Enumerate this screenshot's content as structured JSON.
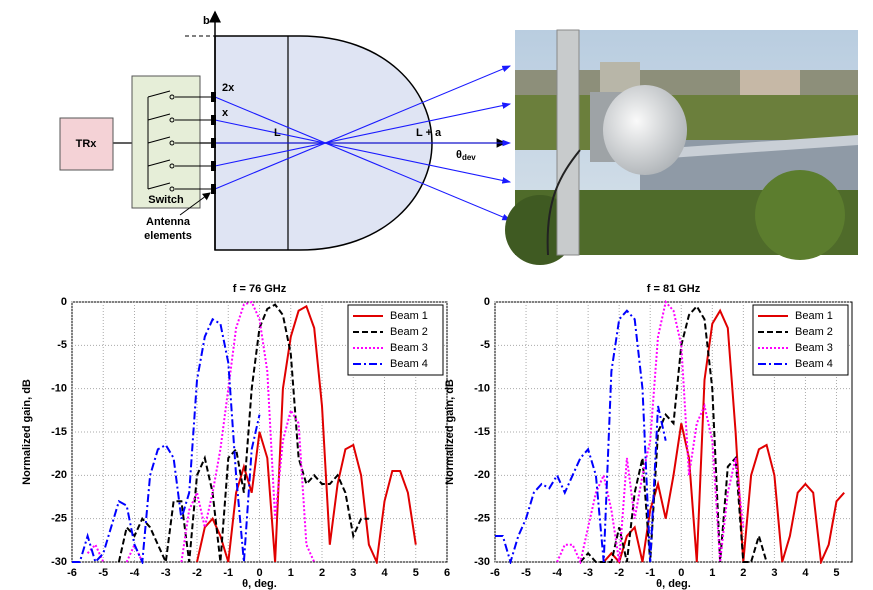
{
  "diagram": {
    "b": "b",
    "two_x": "2x",
    "x": "x",
    "L": "L",
    "L_plus_a": "L + a",
    "theta": "θ",
    "theta_sub": "dev",
    "trx": "TRx",
    "switch": "Switch",
    "antenna": [
      "Antenna",
      "elements"
    ]
  },
  "chart_data": [
    {
      "type": "line",
      "title": "f = 76 GHz",
      "xlabel": "θ, deg.",
      "ylabel": "Normalized gain, dB",
      "xlim": [
        -6,
        6
      ],
      "ylim": [
        -30,
        0
      ],
      "xticks": [
        -6,
        -5,
        -4,
        -3,
        -2,
        -1,
        0,
        1,
        2,
        3,
        4,
        5,
        6
      ],
      "yticks": [
        0,
        -5,
        -10,
        -15,
        -20,
        -25,
        -30
      ],
      "grid": true,
      "legend": "upper right",
      "x": [
        -6,
        -5.75,
        -5.5,
        -5.25,
        -5,
        -4.75,
        -4.5,
        -4.25,
        -4,
        -3.75,
        -3.5,
        -3.25,
        -3,
        -2.75,
        -2.5,
        -2.25,
        -2,
        -1.75,
        -1.5,
        -1.25,
        -1,
        -0.75,
        -0.5,
        -0.25,
        0,
        0.25,
        0.5,
        0.75,
        1,
        1.25,
        1.5,
        1.75,
        2,
        2.25,
        2.5,
        2.75,
        3,
        3.25,
        3.5,
        3.75,
        4,
        4.25,
        4.5,
        4.75,
        5,
        5.25,
        5.5,
        5.75,
        6
      ],
      "series": [
        {
          "name": "Beam 1",
          "color": "#e00000",
          "style": "solid",
          "values": [
            null,
            null,
            null,
            null,
            null,
            null,
            null,
            null,
            null,
            null,
            null,
            null,
            null,
            null,
            null,
            null,
            -30,
            -26,
            -25,
            -27,
            -30,
            -22,
            -19,
            -22,
            -15,
            -18,
            -30,
            -10,
            -4,
            -1,
            -0.5,
            -3,
            -12,
            -28,
            -21,
            -17,
            -16.5,
            -20,
            -28,
            -30,
            -23,
            -19.5,
            -19.5,
            -22,
            -28,
            null,
            null,
            null,
            null
          ]
        },
        {
          "name": "Beam 2",
          "color": "#000000",
          "style": "dashed",
          "values": [
            null,
            null,
            null,
            null,
            null,
            null,
            -30,
            -26,
            -27,
            -25,
            -26,
            -28,
            -30,
            -23,
            -23,
            -30,
            -20,
            -18,
            -22,
            -30,
            -18,
            -17,
            -22,
            -10,
            -3,
            -0.8,
            -0.3,
            -1.5,
            -6,
            -18,
            -21,
            -20,
            -21,
            -21,
            -20,
            -22,
            -27,
            -25,
            -25,
            null,
            null,
            null,
            null,
            null,
            null,
            null,
            null,
            null,
            null
          ]
        },
        {
          "name": "Beam 3",
          "color": "#ff00ff",
          "style": "dotted",
          "values": [
            null,
            null,
            -29,
            -28,
            -30,
            null,
            null,
            -30,
            -28,
            -30,
            null,
            null,
            null,
            null,
            -30,
            -24,
            -22,
            -26,
            -22,
            -17,
            -10,
            -3,
            -0.3,
            0,
            -2,
            -8,
            -25,
            -16,
            -12.5,
            -14,
            -28,
            -30,
            null,
            null,
            null,
            null,
            null,
            null,
            null,
            null,
            null,
            null,
            null,
            null,
            null,
            null,
            null,
            null,
            null
          ]
        },
        {
          "name": "Beam 4",
          "color": "#0000ff",
          "style": "dash-dot",
          "values": [
            -30,
            -30,
            -27,
            -30,
            -29,
            -26,
            -23,
            -23.5,
            -28,
            -30,
            -20,
            -17,
            -16.5,
            -18,
            -25,
            -22,
            -9,
            -4,
            -2,
            -2.5,
            -7,
            -20,
            -30,
            -17,
            -13,
            null,
            null,
            null,
            null,
            null,
            null,
            null,
            null,
            null,
            null,
            null,
            null,
            null,
            null,
            null,
            null,
            null,
            null,
            null,
            null,
            null,
            null,
            null,
            null
          ]
        }
      ]
    },
    {
      "type": "line",
      "title": "f = 81 GHz",
      "xlabel": "θ, deg.",
      "ylabel": "Normalized gain, dB",
      "xlim": [
        -6,
        5.5
      ],
      "ylim": [
        -30,
        0
      ],
      "xticks": [
        -6,
        -5,
        -4,
        -3,
        -2,
        -1,
        0,
        1,
        2,
        3,
        4,
        5
      ],
      "yticks": [
        0,
        -5,
        -10,
        -15,
        -20,
        -25,
        -30
      ],
      "grid": true,
      "legend": "upper right",
      "x": [
        -6,
        -5.75,
        -5.5,
        -5.25,
        -5,
        -4.75,
        -4.5,
        -4.25,
        -4,
        -3.75,
        -3.5,
        -3.25,
        -3,
        -2.75,
        -2.5,
        -2.25,
        -2,
        -1.75,
        -1.5,
        -1.25,
        -1,
        -0.75,
        -0.5,
        -0.25,
        0,
        0.25,
        0.5,
        0.75,
        1,
        1.25,
        1.5,
        1.75,
        2,
        2.25,
        2.5,
        2.75,
        3,
        3.25,
        3.5,
        3.75,
        4,
        4.25,
        4.5,
        4.75,
        5,
        5.25,
        5.5,
        5.75,
        6
      ],
      "series": [
        {
          "name": "Beam 1",
          "color": "#e00000",
          "style": "solid",
          "values": [
            null,
            null,
            null,
            null,
            null,
            null,
            null,
            null,
            null,
            null,
            null,
            null,
            null,
            null,
            -30,
            -29,
            -30,
            -27,
            -26,
            -30,
            -24,
            -21,
            -25,
            -20,
            -14,
            -18,
            -30,
            -9,
            -2.5,
            -1,
            -3,
            -15,
            -30,
            -20,
            -17,
            -16.5,
            -20,
            -30,
            -27,
            -22,
            -21,
            -22,
            -30,
            -28,
            -23,
            -22,
            null,
            null,
            null
          ]
        },
        {
          "name": "Beam 2",
          "color": "#000000",
          "style": "dashed",
          "values": [
            null,
            null,
            null,
            null,
            null,
            null,
            null,
            null,
            null,
            null,
            null,
            -30,
            -29,
            -30,
            -30,
            -30,
            -26,
            -30,
            -22,
            -18,
            -30,
            -15,
            -13,
            -14,
            -5,
            -1.5,
            -0.5,
            -2,
            -10,
            -30,
            -19,
            -18,
            -30,
            -30,
            -27,
            -30,
            null,
            null,
            null,
            null,
            null,
            null,
            null,
            null,
            null,
            null,
            null,
            null,
            null
          ]
        },
        {
          "name": "Beam 3",
          "color": "#ff00ff",
          "style": "dotted",
          "values": [
            null,
            null,
            null,
            null,
            null,
            null,
            null,
            null,
            -30,
            -28,
            -28,
            -30,
            -26,
            -22,
            -20,
            -24,
            -30,
            -18,
            -25,
            -20,
            -16,
            -4,
            0,
            -1,
            -5,
            -20,
            -14,
            -12,
            -16,
            -30,
            -22,
            -18,
            -26,
            null,
            null,
            null,
            null,
            null,
            null,
            null,
            null,
            null,
            null,
            null,
            null,
            null,
            null,
            null,
            null
          ]
        },
        {
          "name": "Beam 4",
          "color": "#0000ff",
          "style": "dash-dot",
          "values": [
            -27,
            -27,
            -30,
            -27,
            -25,
            -22,
            -21,
            -21.5,
            -20,
            -22,
            -20,
            -18,
            -17,
            -20,
            -30,
            -8,
            -2,
            -1,
            -2,
            -10,
            -30,
            -12,
            -16,
            null,
            null,
            null,
            null,
            null,
            null,
            null,
            null,
            null,
            null,
            null,
            null,
            null,
            null,
            null,
            null,
            null,
            null,
            null,
            null,
            null,
            null,
            null,
            null,
            null,
            null
          ]
        }
      ]
    }
  ]
}
